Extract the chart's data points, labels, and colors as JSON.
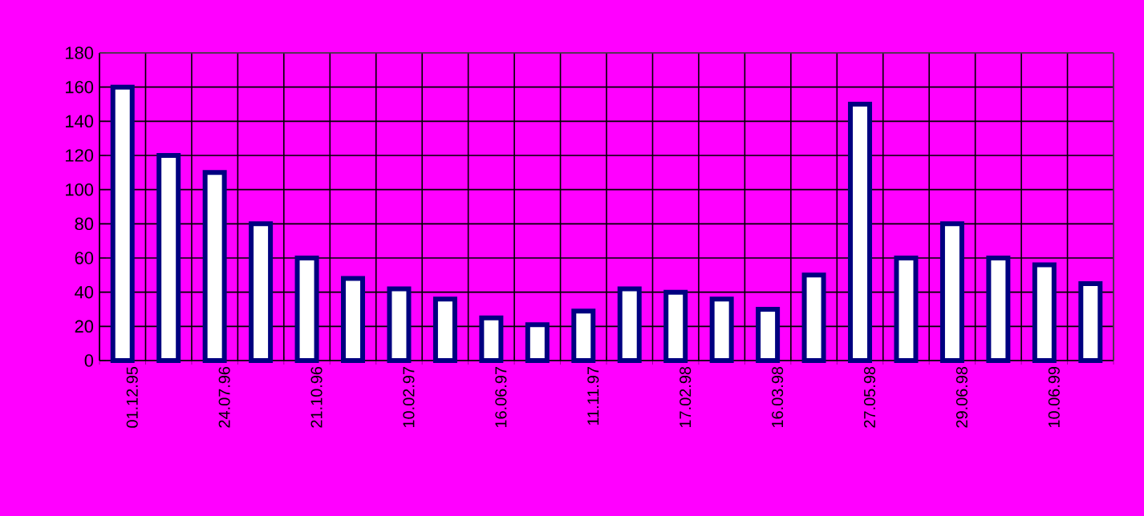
{
  "chart_data": {
    "type": "bar",
    "categories": [
      "01.12.95",
      null,
      "24.07.96",
      null,
      "21.10.96",
      null,
      "10.02.97",
      null,
      "16.06.97",
      null,
      "11.11.97",
      null,
      "17.02.98",
      null,
      "16.03.98",
      null,
      "27.05.98",
      null,
      "29.06.98",
      null,
      "10.06.99",
      null
    ],
    "values": [
      160,
      120,
      110,
      80,
      60,
      48,
      42,
      36,
      25,
      21,
      29,
      42,
      40,
      36,
      30,
      50,
      150,
      60,
      80,
      60,
      56,
      45
    ],
    "color": "#ffffff",
    "ylim": [
      0,
      180
    ],
    "yticks": [
      0,
      20,
      40,
      60,
      80,
      100,
      120,
      140,
      160,
      180
    ],
    "grid": true
  }
}
